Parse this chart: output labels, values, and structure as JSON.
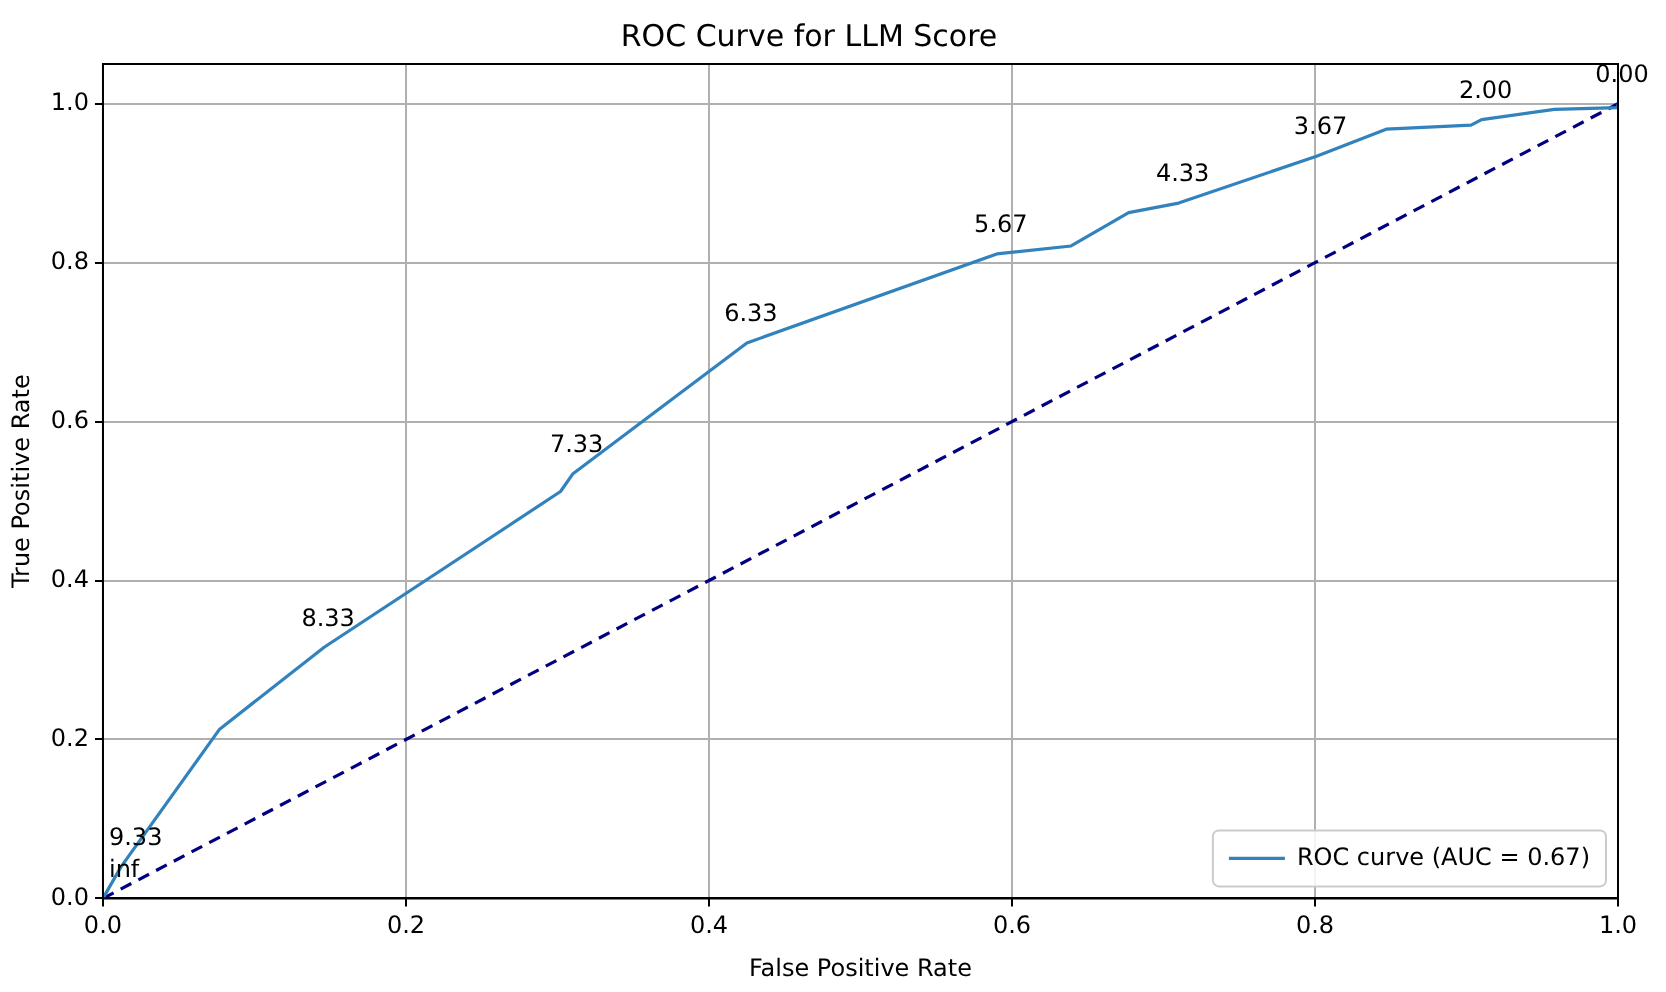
{
  "chart_data": {
    "type": "line",
    "title": "ROC Curve for LLM Score",
    "xlabel": "False Positive Rate",
    "ylabel": "True Positive Rate",
    "xlim": [
      0,
      1
    ],
    "ylim": [
      0,
      1.05
    ],
    "xticks": [
      {
        "value": 0,
        "label": "0.0"
      },
      {
        "value": 0.2,
        "label": "0.2"
      },
      {
        "value": 0.4,
        "label": "0.4"
      },
      {
        "value": 0.6,
        "label": "0.6"
      },
      {
        "value": 0.8,
        "label": "0.8"
      },
      {
        "value": 1,
        "label": "1.0"
      }
    ],
    "yticks": [
      {
        "value": 0,
        "label": "0.0"
      },
      {
        "value": 0.2,
        "label": "0.2"
      },
      {
        "value": 0.4,
        "label": "0.4"
      },
      {
        "value": 0.6,
        "label": "0.6"
      },
      {
        "value": 0.8,
        "label": "0.8"
      },
      {
        "value": 1,
        "label": "1.0"
      }
    ],
    "grid": true,
    "legend": "bottom right",
    "marker": "none",
    "series": [
      {
        "name": "ROC curve (AUC = 0.67)",
        "color": "#3182bd",
        "line_style": "solid",
        "x": [
          0,
          0.012,
          0.077,
          0.146,
          0.302,
          0.31,
          0.425,
          0.59,
          0.639,
          0.677,
          0.71,
          0.801,
          0.847,
          0.903,
          0.91,
          0.958,
          1,
          1
        ],
        "values": [
          0,
          0.04,
          0.213,
          0.316,
          0.512,
          0.534,
          0.699,
          0.811,
          0.821,
          0.863,
          0.875,
          0.934,
          0.968,
          0.973,
          0.98,
          0.993,
          0.995,
          1
        ]
      },
      {
        "color": "#000080",
        "line_style": "dashed",
        "x": [
          0,
          1
        ],
        "values": [
          0,
          1
        ]
      }
    ],
    "annotations": [
      {
        "text": "inf",
        "x": 0,
        "y": 0
      },
      {
        "text": "9.33",
        "x": 0.012,
        "y": 0.04
      },
      {
        "text": "8.33",
        "x": 0.146,
        "y": 0.316
      },
      {
        "text": "7.33",
        "x": 0.31,
        "y": 0.534
      },
      {
        "text": "6.33",
        "x": 0.425,
        "y": 0.699
      },
      {
        "text": "5.67",
        "x": 0.59,
        "y": 0.811
      },
      {
        "text": "4.33",
        "x": 0.71,
        "y": 0.875
      },
      {
        "text": "3.67",
        "x": 0.801,
        "y": 0.934
      },
      {
        "text": "2.00",
        "x": 0.91,
        "y": 0.98
      },
      {
        "text": "0.00",
        "x": 1,
        "y": 1
      }
    ]
  }
}
